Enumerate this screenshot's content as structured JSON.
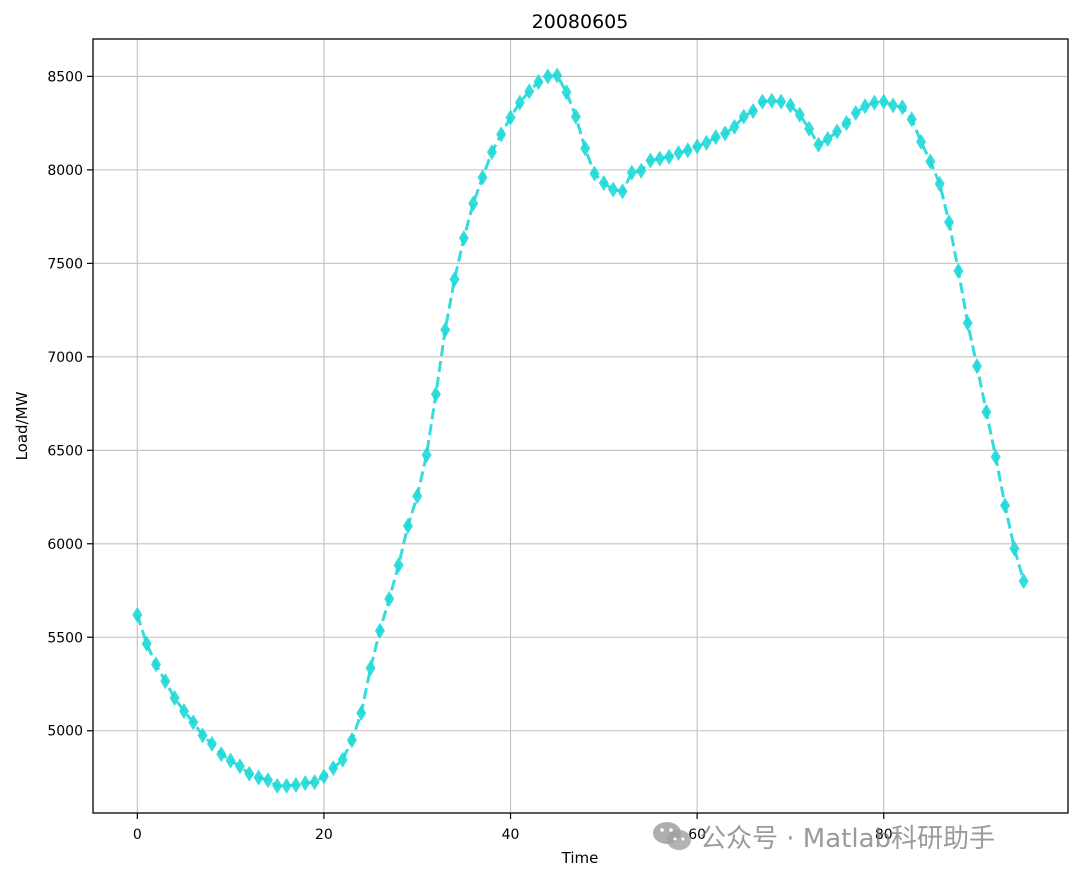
{
  "chart_data": {
    "type": "line",
    "title": "20080605",
    "xlabel": "Time",
    "ylabel": "Load/MW",
    "xlim": [
      -4.75,
      99.75
    ],
    "ylim": [
      4560,
      8700
    ],
    "xticks": [
      0,
      20,
      40,
      60,
      80
    ],
    "yticks": [
      5000,
      5500,
      6000,
      6500,
      7000,
      7500,
      8000,
      8500
    ],
    "grid": true,
    "series": [
      {
        "color": "#1fd8d8",
        "line_style": "dashed",
        "marker": "diamond",
        "x": [
          0,
          1,
          2,
          3,
          4,
          5,
          6,
          7,
          8,
          9,
          10,
          11,
          12,
          13,
          14,
          15,
          16,
          17,
          18,
          19,
          20,
          21,
          22,
          23,
          24,
          25,
          26,
          27,
          28,
          29,
          30,
          31,
          32,
          33,
          34,
          35,
          36,
          37,
          38,
          39,
          40,
          41,
          42,
          43,
          44,
          45,
          46,
          47,
          48,
          49,
          50,
          51,
          52,
          53,
          54,
          55,
          56,
          57,
          58,
          59,
          60,
          61,
          62,
          63,
          64,
          65,
          66,
          67,
          68,
          69,
          70,
          71,
          72,
          73,
          74,
          75,
          76,
          77,
          78,
          79,
          80,
          81,
          82,
          83,
          84,
          85,
          86,
          87,
          88,
          89,
          90,
          91,
          92,
          93,
          94,
          95
        ],
        "values": [
          5620,
          5465,
          5355,
          5265,
          5175,
          5105,
          5045,
          4975,
          4930,
          4875,
          4840,
          4810,
          4770,
          4750,
          4735,
          4705,
          4705,
          4710,
          4720,
          4725,
          4755,
          4800,
          4845,
          4950,
          5095,
          5335,
          5535,
          5705,
          5885,
          6095,
          6255,
          6475,
          6800,
          7145,
          7415,
          7635,
          7820,
          7960,
          8095,
          8190,
          8280,
          8360,
          8420,
          8470,
          8500,
          8505,
          8415,
          8285,
          8115,
          7980,
          7930,
          7895,
          7885,
          7985,
          7995,
          8050,
          8060,
          8070,
          8090,
          8105,
          8125,
          8145,
          8175,
          8195,
          8230,
          8285,
          8315,
          8365,
          8370,
          8365,
          8345,
          8295,
          8220,
          8135,
          8165,
          8205,
          8250,
          8305,
          8340,
          8360,
          8365,
          8345,
          8335,
          8270,
          8150,
          8045,
          7925,
          7720,
          7460,
          7180,
          6950,
          6705,
          6465,
          6205,
          5975,
          5800
        ]
      }
    ]
  },
  "watermark": {
    "text": "公众号 · Matlab科研助手",
    "icon": "wechat-icon"
  }
}
